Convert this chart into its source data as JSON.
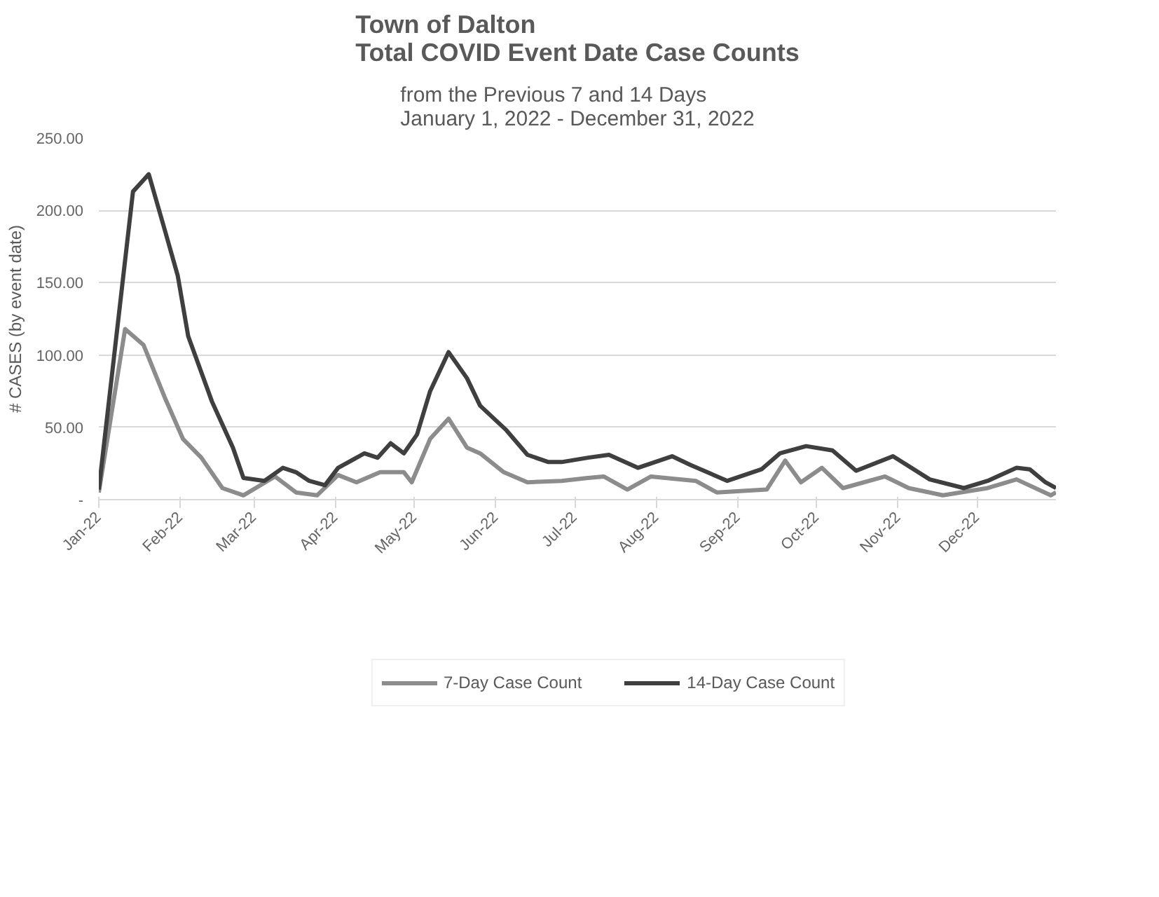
{
  "chart_data": {
    "type": "line",
    "title": "Town of Dalton\nTotal COVID Event Date Case Counts",
    "subtitle": "from the Previous 7 and 14 Days\nJanuary 1, 2022 - December 31, 2022",
    "ylabel": "# CASES (by event date)",
    "xlim": [
      "2022-01-01",
      "2022-12-31"
    ],
    "xticks": [
      {
        "value": "2022-01-01",
        "label": "Jan-22"
      },
      {
        "value": "2022-02-01",
        "label": "Feb-22"
      },
      {
        "value": "2022-03-01",
        "label": "Mar-22"
      },
      {
        "value": "2022-04-01",
        "label": "Apr-22"
      },
      {
        "value": "2022-05-01",
        "label": "May-22"
      },
      {
        "value": "2022-06-01",
        "label": "Jun-22"
      },
      {
        "value": "2022-07-01",
        "label": "Jul-22"
      },
      {
        "value": "2022-08-01",
        "label": "Aug-22"
      },
      {
        "value": "2022-09-01",
        "label": "Sep-22"
      },
      {
        "value": "2022-10-01",
        "label": "Oct-22"
      },
      {
        "value": "2022-11-01",
        "label": "Nov-22"
      },
      {
        "value": "2022-12-01",
        "label": "Dec-22"
      }
    ],
    "ylim": [
      0,
      250
    ],
    "yticks": [
      {
        "value": 0,
        "label": "-"
      },
      {
        "value": 50,
        "label": "50.00"
      },
      {
        "value": 100,
        "label": "100.00"
      },
      {
        "value": 150,
        "label": "150.00"
      },
      {
        "value": 200,
        "label": "200.00"
      },
      {
        "value": 250,
        "label": "250.00"
      }
    ],
    "grid": "y",
    "legend": "bottom",
    "marker": "none",
    "line_style": "solid",
    "series": [
      {
        "name": "7-Day Case Count",
        "color": "#8c8c8c",
        "x": [
          "2022-01-01",
          "2022-01-11",
          "2022-01-18",
          "2022-01-26",
          "2022-02-02",
          "2022-02-09",
          "2022-02-17",
          "2022-02-25",
          "2022-03-09",
          "2022-03-17",
          "2022-03-25",
          "2022-04-02",
          "2022-04-09",
          "2022-04-18",
          "2022-04-27",
          "2022-04-30",
          "2022-05-07",
          "2022-05-14",
          "2022-05-21",
          "2022-05-26",
          "2022-06-04",
          "2022-06-13",
          "2022-06-26",
          "2022-07-06",
          "2022-07-12",
          "2022-07-21",
          "2022-07-30",
          "2022-08-16",
          "2022-08-24",
          "2022-09-12",
          "2022-09-19",
          "2022-09-25",
          "2022-10-03",
          "2022-10-11",
          "2022-10-27",
          "2022-11-05",
          "2022-11-18",
          "2022-12-05",
          "2022-12-16",
          "2022-12-29",
          "2022-12-31"
        ],
        "values": [
          5,
          118,
          107,
          71,
          42,
          29,
          8,
          3,
          16,
          5,
          3,
          17,
          12,
          19,
          19,
          12,
          42,
          56,
          36,
          32,
          19,
          12,
          13,
          15,
          16,
          7,
          16,
          13,
          5,
          7,
          27,
          12,
          22,
          8,
          16,
          8,
          3,
          8,
          14,
          3,
          5
        ]
      },
      {
        "name": "14-Day Case Count",
        "color": "#3f3f3f",
        "x": [
          "2022-01-01",
          "2022-01-14",
          "2022-01-20",
          "2022-01-26",
          "2022-01-31",
          "2022-02-04",
          "2022-02-13",
          "2022-02-21",
          "2022-02-25",
          "2022-03-05",
          "2022-03-12",
          "2022-03-17",
          "2022-03-22",
          "2022-03-28",
          "2022-04-02",
          "2022-04-12",
          "2022-04-17",
          "2022-04-22",
          "2022-04-27",
          "2022-05-02",
          "2022-05-07",
          "2022-05-14",
          "2022-05-21",
          "2022-05-26",
          "2022-06-05",
          "2022-06-13",
          "2022-06-21",
          "2022-06-26",
          "2022-07-06",
          "2022-07-14",
          "2022-07-25",
          "2022-08-07",
          "2022-08-14",
          "2022-08-28",
          "2022-09-10",
          "2022-09-17",
          "2022-09-27",
          "2022-10-07",
          "2022-10-16",
          "2022-10-30",
          "2022-11-13",
          "2022-11-26",
          "2022-12-05",
          "2022-12-16",
          "2022-12-21",
          "2022-12-27",
          "2022-12-31"
        ],
        "values": [
          7,
          213,
          225,
          187,
          155,
          113,
          68,
          36,
          15,
          13,
          22,
          19,
          13,
          10,
          22,
          32,
          29,
          39,
          32,
          45,
          75,
          102,
          84,
          65,
          48,
          31,
          26,
          26,
          29,
          31,
          22,
          30,
          24,
          13,
          21,
          32,
          37,
          34,
          20,
          30,
          14,
          8,
          13,
          22,
          21,
          12,
          8
        ]
      }
    ]
  }
}
